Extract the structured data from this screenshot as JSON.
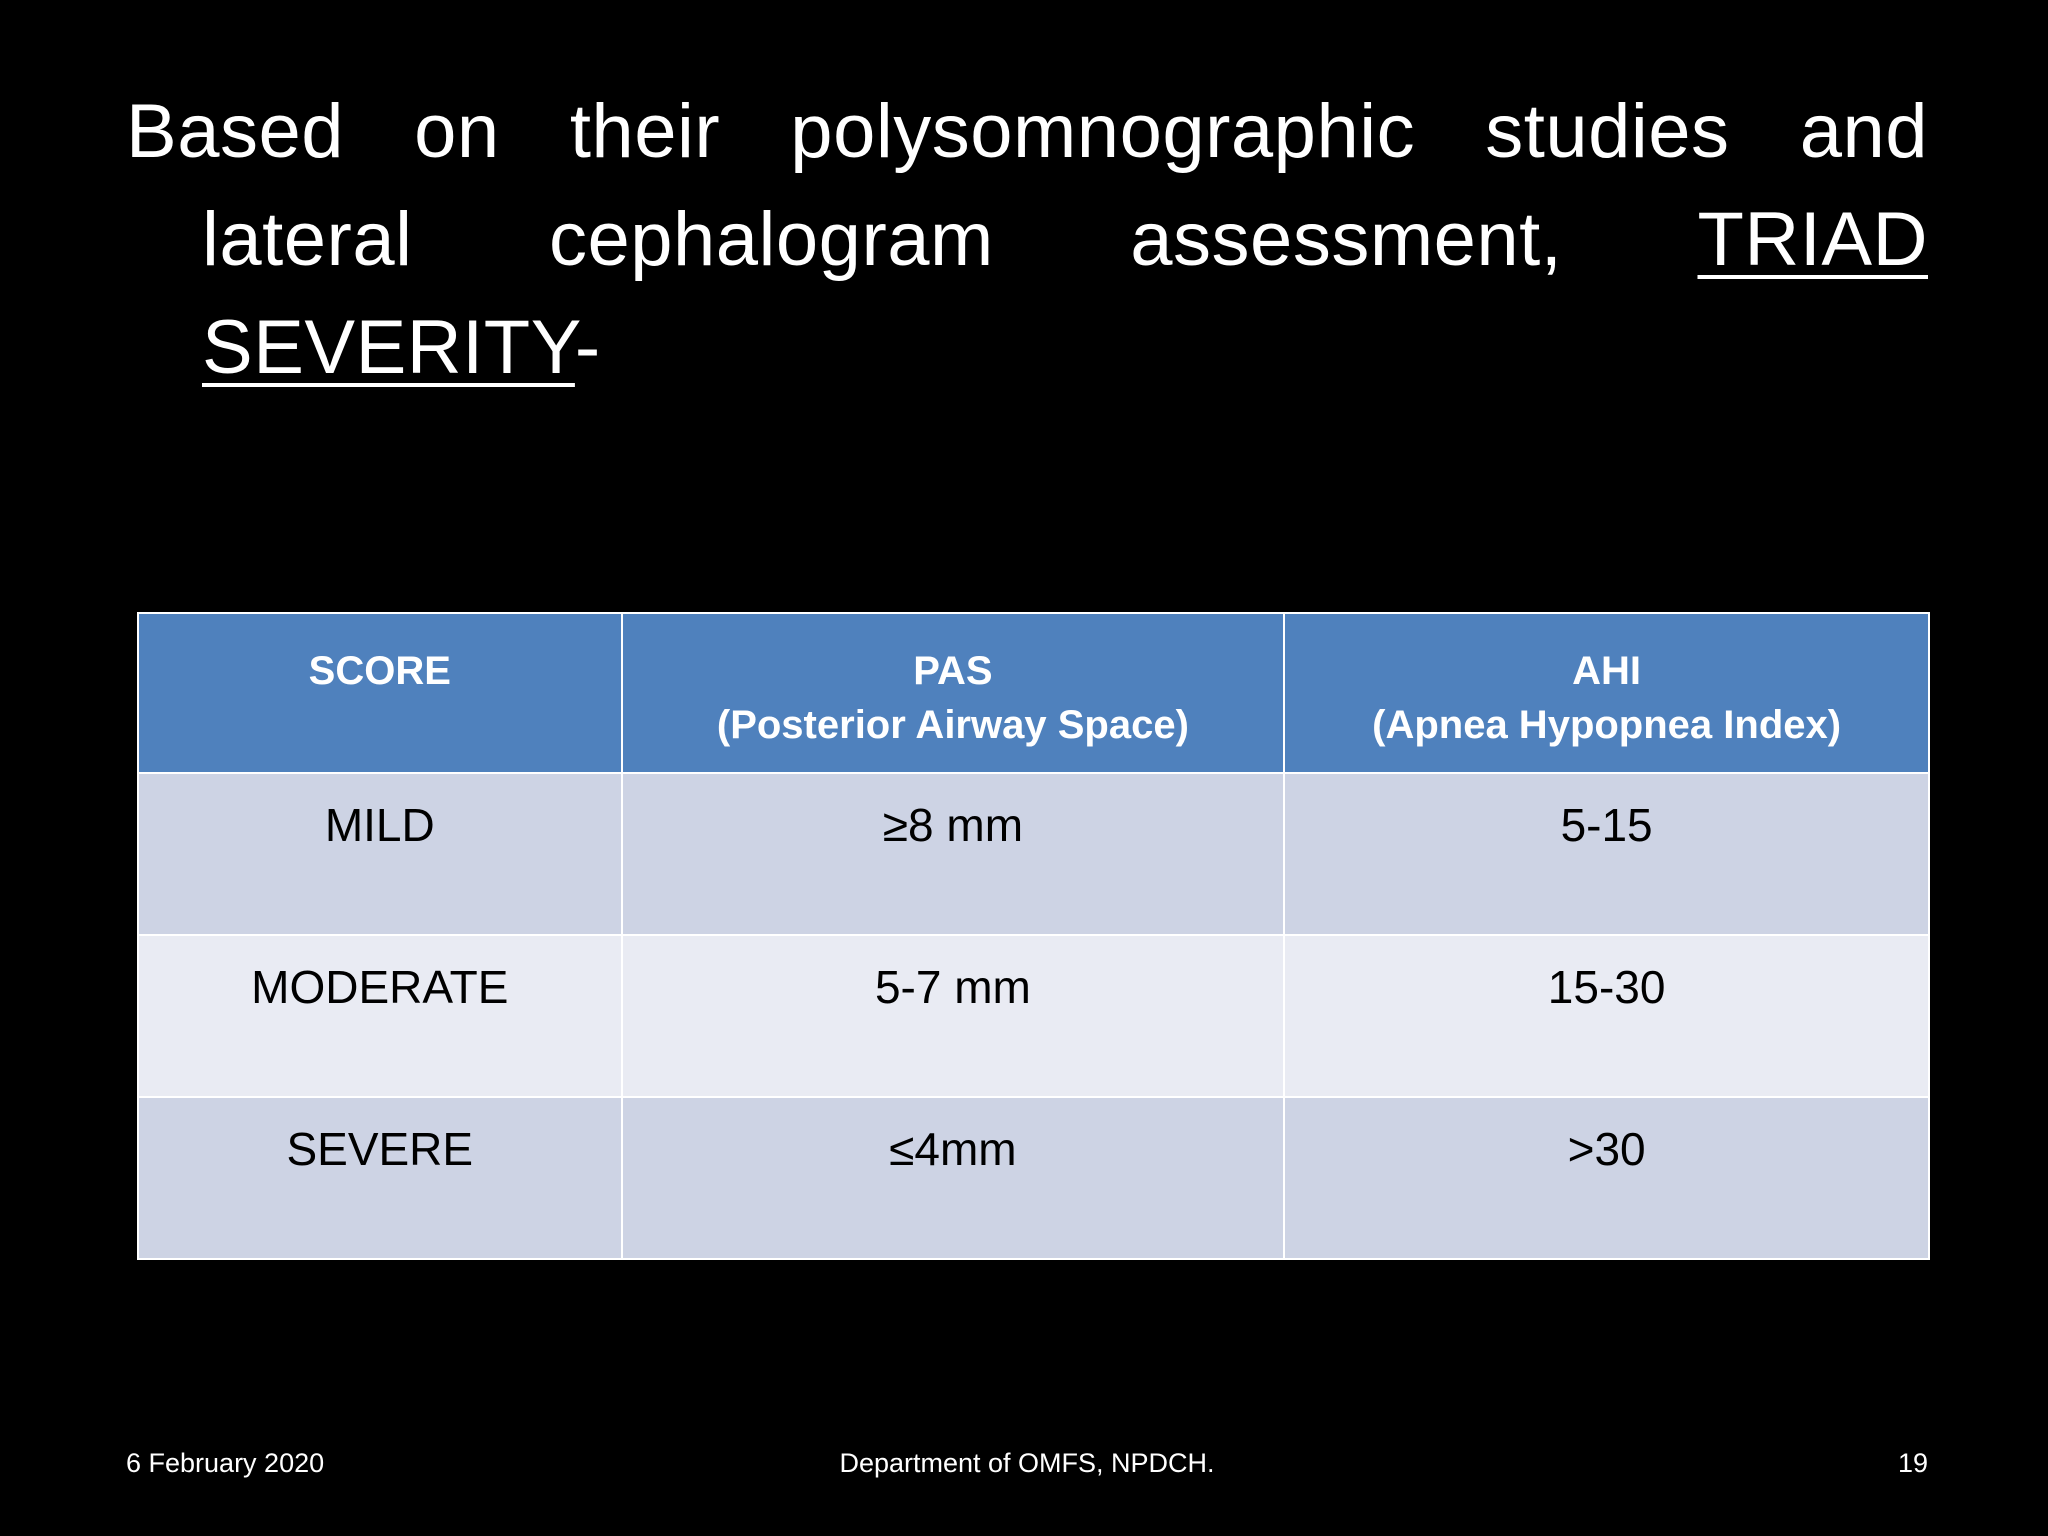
{
  "slide": {
    "title": {
      "line1": "Based on their polysomnographic studies and",
      "line2_pre": "lateral cephalogram assessment,",
      "line2_underlined": "TRIAD",
      "line3_underlined": "SEVERITY",
      "line3_suffix": "-"
    },
    "table": {
      "headers": [
        {
          "line1": "SCORE",
          "line2": ""
        },
        {
          "line1": "PAS",
          "line2": "(Posterior Airway Space)"
        },
        {
          "line1": "AHI",
          "line2": "(Apnea Hypopnea Index)"
        }
      ],
      "rows": [
        [
          "MILD",
          "≥8 mm",
          "5-15"
        ],
        [
          "MODERATE",
          "5-7 mm",
          "15-30"
        ],
        [
          "SEVERE",
          "≤4mm",
          ">30"
        ]
      ]
    },
    "footer": {
      "date": "6 February 2020",
      "center": "Department of OMFS, NPDCH.",
      "page_number": "19"
    },
    "colors": {
      "background": "#000000",
      "header_bg": "#4F81BD",
      "row_band_dark": "#CDD3E4",
      "row_band_light": "#E9EBF3",
      "title_text": "#FFFFFF",
      "cell_text": "#000000"
    }
  },
  "chart_data": {
    "type": "table",
    "title": "TRIAD SEVERITY",
    "columns": [
      "SCORE",
      "PAS (Posterior Airway Space)",
      "AHI (Apnea Hypopnea Index)"
    ],
    "rows": [
      [
        "MILD",
        "≥8 mm",
        "5-15"
      ],
      [
        "MODERATE",
        "5-7 mm",
        "15-30"
      ],
      [
        "SEVERE",
        "≤4mm",
        ">30"
      ]
    ]
  }
}
